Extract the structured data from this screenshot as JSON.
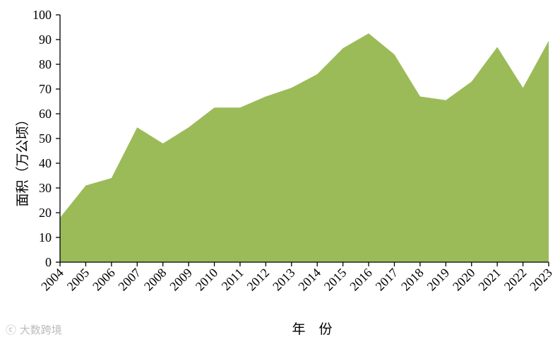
{
  "chart_data": {
    "type": "area",
    "categories": [
      "2004",
      "2005",
      "2006",
      "2007",
      "2008",
      "2009",
      "2010",
      "2011",
      "2012",
      "2013",
      "2014",
      "2015",
      "2016",
      "2017",
      "2018",
      "2019",
      "2020",
      "2021",
      "2022",
      "2023"
    ],
    "series": [
      {
        "values": [
          18,
          31,
          34,
          54.5,
          48,
          54.5,
          62.5,
          62.5,
          67,
          70.5,
          76,
          86.5,
          92.5,
          84,
          67,
          65.5,
          73,
          87,
          70.5,
          89.5
        ]
      }
    ],
    "xlabel": "年　份",
    "ylabel": "面积（万公顷）",
    "ylim": [
      0,
      100
    ],
    "yticks": [
      0,
      10,
      20,
      30,
      40,
      50,
      60,
      70,
      80,
      90,
      100
    ],
    "fill_color": "#9bbb59",
    "grid": false,
    "legend": "none"
  },
  "watermark": "大数跨境"
}
